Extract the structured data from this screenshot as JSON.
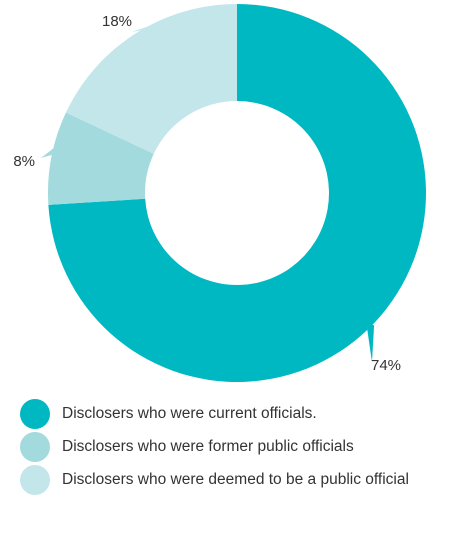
{
  "chart_data": {
    "type": "pie",
    "style": "donut",
    "title": "",
    "slices": [
      {
        "label": "Disclosers who were current officials.",
        "value": 74,
        "display": "74%",
        "color": "#00b8c2"
      },
      {
        "label": "Disclosers who were former public officials",
        "value": 8,
        "display": "8%",
        "color": "#a2dade"
      },
      {
        "label": "Disclosers who were deemed to be a public official",
        "value": 18,
        "display": "18%",
        "color": "#c2e6ea"
      }
    ],
    "legend_position": "bottom"
  }
}
